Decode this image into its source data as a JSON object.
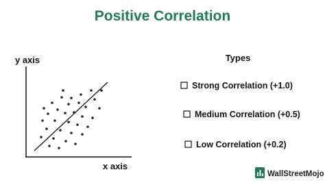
{
  "title": "Positive Correlation",
  "diagram": {
    "y_axis_label": "y axis",
    "x_axis_label": "x axis"
  },
  "types": {
    "heading": "Types",
    "items": [
      "Strong Correlation (+1.0)",
      "Medium Correlation (+0.5)",
      "Low Correlation (+0.2)"
    ]
  },
  "logo": "WallStreetMojo"
}
